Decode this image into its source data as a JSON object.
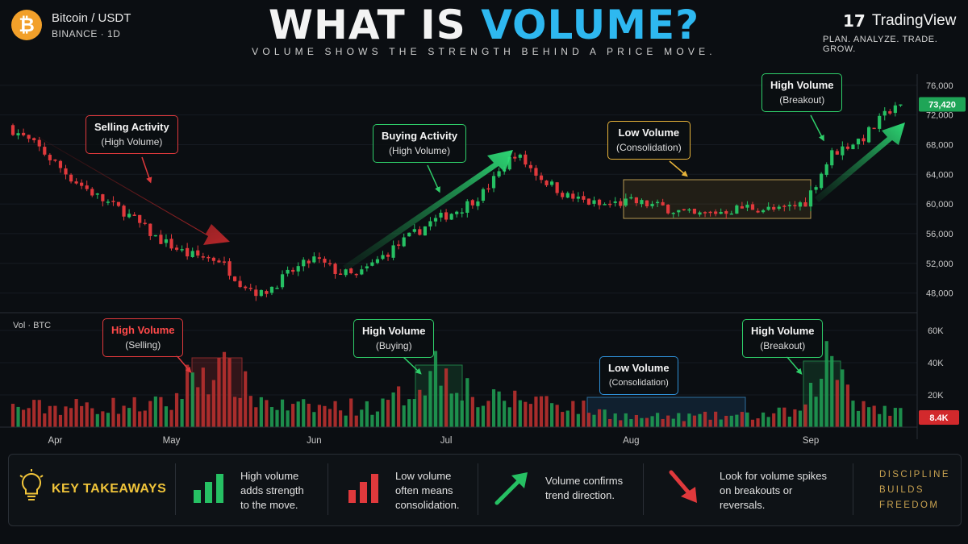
{
  "header": {
    "logo_glyph": "₿",
    "pair": "Bitcoin / USDT",
    "exchange": "BINANCE · 1D",
    "title_part1": "WHAT IS ",
    "title_part2": "VOLUME?",
    "subtitle": "VOLUME SHOWS THE STRENGTH BEHIND A PRICE MOVE.",
    "brand_mark": "17",
    "brand": "TradingView",
    "tagline": "PLAN. ANALYZE. TRADE. GROW."
  },
  "colors": {
    "background": "#0b0e12",
    "up": "#26c063",
    "down": "#e0393c",
    "accent_blue": "#2eb8f0",
    "gold": "#f0c43a"
  },
  "chart_data": {
    "type": "candlestick_with_volume",
    "symbol": "Bitcoin / USDT",
    "interval": "1D",
    "price_axis": {
      "ticks": [
        48000,
        52000,
        56000,
        60000,
        64000,
        68000,
        72000,
        76000
      ],
      "tick_labels": [
        "48,000",
        "52,000",
        "56,000",
        "60,000",
        "64,000",
        "68,000",
        "72,000",
        "76,000"
      ],
      "range": [
        46000,
        77500
      ]
    },
    "last_price": 73420,
    "last_price_label": "73,420",
    "volume_axis": {
      "ticks": [
        20000,
        40000,
        60000
      ],
      "tick_labels": [
        "20K",
        "40K",
        "60K"
      ],
      "range": [
        0,
        66000
      ],
      "label": "Vol · BTC"
    },
    "last_volume_label": "8.4K",
    "x_axis": {
      "labels": [
        "Apr",
        "May",
        "Jun",
        "Jul",
        "Aug",
        "Sep"
      ],
      "label_candle_index": [
        8,
        30,
        57,
        82,
        117,
        151
      ]
    },
    "price_anchors": [
      [
        0,
        70500
      ],
      [
        6,
        67500
      ],
      [
        12,
        63500
      ],
      [
        18,
        60500
      ],
      [
        22,
        59000
      ],
      [
        28,
        55500
      ],
      [
        34,
        53200
      ],
      [
        40,
        52500
      ],
      [
        44,
        49500
      ],
      [
        48,
        47800
      ],
      [
        54,
        51000
      ],
      [
        58,
        52600
      ],
      [
        62,
        51000
      ],
      [
        66,
        50200
      ],
      [
        72,
        53500
      ],
      [
        80,
        57500
      ],
      [
        86,
        59500
      ],
      [
        90,
        61500
      ],
      [
        96,
        66800
      ],
      [
        101,
        63500
      ],
      [
        106,
        61000
      ],
      [
        112,
        59800
      ],
      [
        118,
        60300
      ],
      [
        124,
        59600
      ],
      [
        130,
        58400
      ],
      [
        140,
        59600
      ],
      [
        146,
        59100
      ],
      [
        151,
        60300
      ],
      [
        156,
        66800
      ],
      [
        162,
        69000
      ],
      [
        168,
        73420
      ]
    ],
    "volume_anchors": [
      [
        0,
        12000
      ],
      [
        30,
        14000
      ],
      [
        34,
        34000
      ],
      [
        38,
        36000
      ],
      [
        42,
        30000
      ],
      [
        46,
        18000
      ],
      [
        52,
        12000
      ],
      [
        70,
        13000
      ],
      [
        76,
        24000
      ],
      [
        80,
        38000
      ],
      [
        84,
        32000
      ],
      [
        88,
        16000
      ],
      [
        100,
        18000
      ],
      [
        110,
        10000
      ],
      [
        118,
        6000
      ],
      [
        140,
        7000
      ],
      [
        150,
        10000
      ],
      [
        152,
        30000
      ],
      [
        154,
        42000
      ],
      [
        157,
        34000
      ],
      [
        160,
        16000
      ],
      [
        168,
        8400
      ]
    ],
    "annotations": [
      {
        "price_pane": true,
        "line1": "Selling Activity",
        "line2": "(High Volume)"
      },
      {
        "price_pane": true,
        "line1": "Buying Activity",
        "line2": "(High Volume)"
      },
      {
        "price_pane": true,
        "line1": "Low Volume",
        "line2": "(Consolidation)"
      },
      {
        "price_pane": true,
        "line1": "High Volume",
        "line2": "(Breakout)"
      },
      {
        "volume_pane": true,
        "line1": "High Volume",
        "line2": "(Selling)"
      },
      {
        "volume_pane": true,
        "line1": "High Volume",
        "line2": "(Buying)"
      },
      {
        "volume_pane": true,
        "line1": "Low Volume",
        "line2": "(Consolidation)"
      },
      {
        "volume_pane": true,
        "line1": "High Volume",
        "line2": "(Breakout)"
      }
    ]
  },
  "takeaways": {
    "icon": "lightbulb-icon",
    "label": "KEY TAKEAWAYS",
    "items": [
      {
        "icon": "green-bars-icon",
        "l1": "High volume",
        "l2": "adds strength",
        "l3": "to the move."
      },
      {
        "icon": "red-bars-icon",
        "l1": "Low volume",
        "l2": "often means",
        "l3": "consolidation."
      },
      {
        "icon": "green-arrow-up-icon",
        "l1": "Volume confirms",
        "l2": "trend direction.",
        "l3": ""
      },
      {
        "icon": "red-arrow-down-icon",
        "l1": "Look for volume spikes",
        "l2": "on breakouts or",
        "l3": "reversals."
      }
    ],
    "motto": [
      "DISCIPLINE",
      "BUILDS",
      "FREEDOM"
    ]
  }
}
